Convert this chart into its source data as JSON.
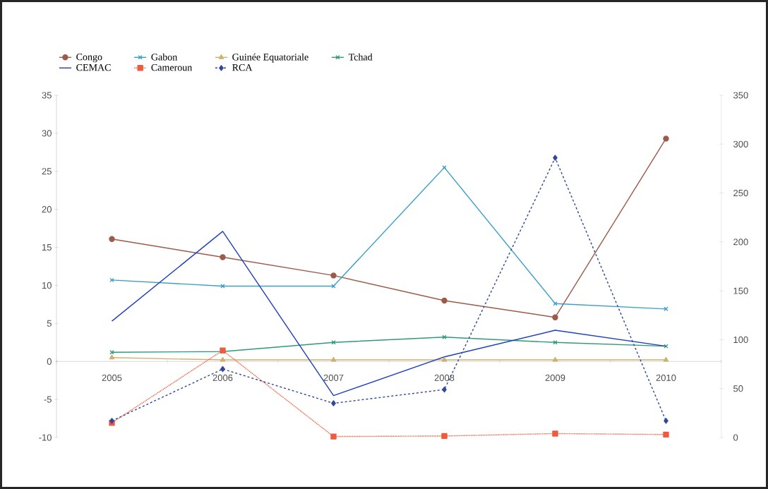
{
  "chart_data": {
    "type": "line",
    "categories": [
      "2005",
      "2006",
      "2007",
      "2008",
      "2009",
      "2010"
    ],
    "series": [
      {
        "name": "Congo",
        "color": "#9c5a4a",
        "marker": "circle",
        "line_style": "solid",
        "values": [
          16.1,
          13.7,
          11.3,
          8.0,
          5.8,
          29.3
        ]
      },
      {
        "name": "Gabon",
        "color": "#3aa0c8",
        "marker": "cross",
        "line_style": "solid",
        "values": [
          10.7,
          9.9,
          9.9,
          25.5,
          7.6,
          6.9
        ]
      },
      {
        "name": "Guinée Equatoriale",
        "color": "#d0b070",
        "marker": "triangle",
        "line_style": "solid",
        "values": [
          0.5,
          0.2,
          0.2,
          0.2,
          0.2,
          0.2
        ]
      },
      {
        "name": "Tchad",
        "color": "#2e9a7a",
        "marker": "cross",
        "line_style": "solid",
        "values": [
          1.2,
          1.3,
          2.5,
          3.2,
          2.5,
          2.0
        ]
      },
      {
        "name": "CEMAC",
        "color": "#1f3fbf",
        "marker": "none",
        "line_style": "solid",
        "values": [
          5.3,
          17.1,
          -4.5,
          0.6,
          4.1,
          2.0
        ]
      },
      {
        "name": "Cameroun",
        "color": "#f05a3c",
        "marker": "square",
        "line_style": "dotted",
        "axis": "y2",
        "values": [
          15,
          89,
          1,
          1.5,
          4,
          3
        ]
      },
      {
        "name": "RCA",
        "color": "#30489a",
        "marker": "diamond",
        "line_style": "dashed",
        "axis": "y2",
        "values": [
          17,
          70,
          35,
          49,
          286,
          17
        ]
      }
    ],
    "ylim": [
      -10,
      35
    ],
    "yticks": [
      -10,
      -5,
      0,
      5,
      10,
      15,
      20,
      25,
      30,
      35
    ],
    "y2lim": [
      0,
      350
    ],
    "y2ticks": [
      0,
      50,
      100,
      150,
      200,
      250,
      300,
      350
    ],
    "grid": false,
    "legend": "top"
  }
}
